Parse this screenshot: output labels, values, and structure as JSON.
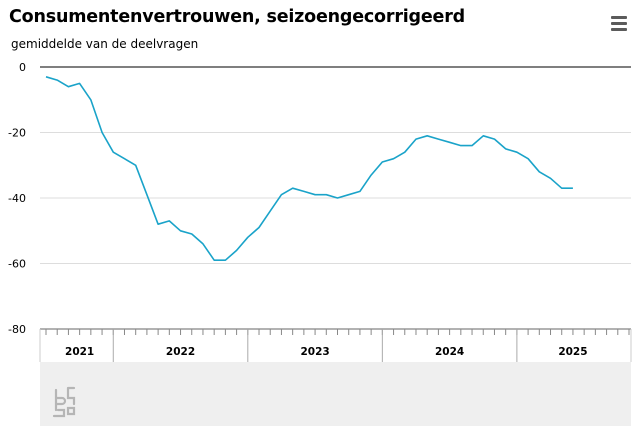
{
  "chart_data": {
    "type": "line",
    "title": "Consumentenvertrouwen, seizoengecorrigeerd",
    "subtitle": "gemiddelde van de deelvragen",
    "xlabel": "",
    "ylabel": "",
    "ylim": [
      -80,
      0
    ],
    "yticks": [
      0,
      -20,
      -40,
      -60,
      -80
    ],
    "grid": true,
    "x_axis": {
      "start": "2021-01",
      "end": "2025-05",
      "year_labels": [
        {
          "label": "2021",
          "from": "2021-01",
          "to": "2021-07"
        },
        {
          "label": "2022",
          "from": "2021-07",
          "to": "2022-07"
        },
        {
          "label": "2023",
          "from": "2022-07",
          "to": "2023-07"
        },
        {
          "label": "2024",
          "from": "2023-07",
          "to": "2024-07"
        },
        {
          "label": "2025",
          "from": "2024-07",
          "to": "2025-05"
        }
      ]
    },
    "series": [
      {
        "color": "#1aa3c9",
        "points": [
          [
            "2021-01",
            -3
          ],
          [
            "2021-02",
            -4
          ],
          [
            "2021-03",
            -6
          ],
          [
            "2021-04",
            -5
          ],
          [
            "2021-05",
            -10
          ],
          [
            "2021-06",
            -20
          ],
          [
            "2021-07",
            -26
          ],
          [
            "2021-08",
            -28
          ],
          [
            "2021-09",
            -30
          ],
          [
            "2021-10",
            -39
          ],
          [
            "2021-11",
            -48
          ],
          [
            "2021-12",
            -47
          ],
          [
            "2022-01",
            -50
          ],
          [
            "2022-02",
            -51
          ],
          [
            "2022-03",
            -54
          ],
          [
            "2022-04",
            -59
          ],
          [
            "2022-05",
            -59
          ],
          [
            "2022-06",
            -56
          ],
          [
            "2022-07",
            -52
          ],
          [
            "2022-08",
            -49
          ],
          [
            "2022-09",
            -44
          ],
          [
            "2022-10",
            -39
          ],
          [
            "2022-11",
            -37
          ],
          [
            "2022-12",
            -38
          ],
          [
            "2023-01",
            -39
          ],
          [
            "2023-02",
            -39
          ],
          [
            "2023-03",
            -40
          ],
          [
            "2023-04",
            -39
          ],
          [
            "2023-05",
            -38
          ],
          [
            "2023-06",
            -33
          ],
          [
            "2023-07",
            -29
          ],
          [
            "2023-08",
            -28
          ],
          [
            "2023-09",
            -26
          ],
          [
            "2023-10",
            -22
          ],
          [
            "2023-11",
            -21
          ],
          [
            "2023-12",
            -22
          ],
          [
            "2024-01",
            -23
          ],
          [
            "2024-02",
            -24
          ],
          [
            "2024-03",
            -24
          ],
          [
            "2024-04",
            -21
          ],
          [
            "2024-05",
            -22
          ],
          [
            "2024-06",
            -25
          ],
          [
            "2024-07",
            -26
          ],
          [
            "2024-08",
            -28
          ],
          [
            "2024-09",
            -32
          ],
          [
            "2024-10",
            -34
          ],
          [
            "2024-11",
            -37
          ],
          [
            "2024-12",
            -37
          ]
        ]
      }
    ]
  },
  "icons": {
    "menu": "hamburger-menu-icon",
    "logo": "cbs-logo-icon"
  },
  "colors": {
    "line": "#1aa3c9",
    "grid": "#dddddd",
    "zero_line": "#333333",
    "axis": "#666666",
    "logo_band": "#efefef"
  }
}
